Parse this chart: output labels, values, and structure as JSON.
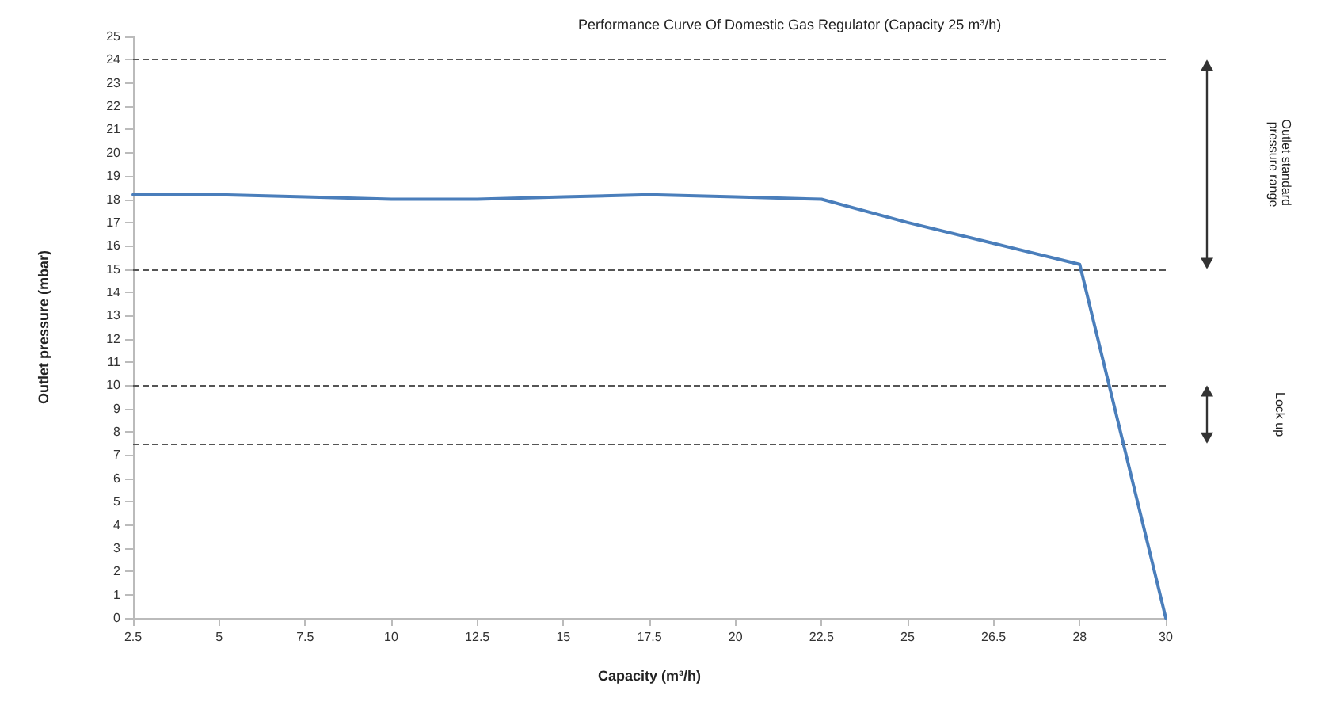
{
  "chart_data": {
    "type": "line",
    "title": "Performance Curve Of Domestic Gas Regulator (Capacity 25 m³/h)",
    "xlabel": "Capacity (m³/h)",
    "ylabel": "Outlet pressure (mbar)",
    "categories": [
      "2.5",
      "5",
      "7.5",
      "10",
      "12.5",
      "15",
      "17.5",
      "20",
      "22.5",
      "25",
      "26.5",
      "28",
      "30"
    ],
    "series": [
      {
        "color": "#4a7ebb",
        "values": [
          18.2,
          18.2,
          18.1,
          18.0,
          18.0,
          18.1,
          18.2,
          18.1,
          18.0,
          17.0,
          16.1,
          15.2,
          0
        ]
      }
    ],
    "ylim": [
      0,
      25
    ],
    "yticks": [
      0,
      1,
      2,
      3,
      4,
      5,
      6,
      7,
      8,
      9,
      10,
      11,
      12,
      13,
      14,
      15,
      16,
      17,
      18,
      19,
      20,
      21,
      22,
      23,
      24,
      25
    ],
    "ref_lines": [
      {
        "axis": "y",
        "value": 24,
        "line_style": "dashed",
        "color": "#555555"
      },
      {
        "axis": "y",
        "value": 15,
        "line_style": "dashed",
        "color": "#555555"
      },
      {
        "axis": "y",
        "value": 10,
        "line_style": "dashed",
        "color": "#555555"
      },
      {
        "axis": "y",
        "value": 7.5,
        "line_style": "dashed",
        "color": "#555555"
      }
    ],
    "annotations": [
      "Outlet standard pressure range",
      "Lock up"
    ],
    "grid": false,
    "marker": "none",
    "line_style": "solid"
  }
}
